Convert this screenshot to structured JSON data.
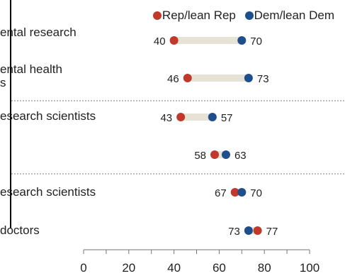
{
  "chart_data": {
    "type": "dumbbell",
    "legend": [
      {
        "label": "Rep/lean Rep",
        "color": "#c0392b"
      },
      {
        "label": "Dem/lean Dem",
        "color": "#1f4e8c"
      }
    ],
    "rows": [
      {
        "label": "ental research",
        "sublabel": "",
        "rep": 40,
        "dem": 70
      },
      {
        "label": "ental health",
        "sublabel": "s",
        "rep": 46,
        "dem": 73
      },
      {
        "label": "esearch scientists",
        "sublabel": "",
        "rep": 43,
        "dem": 57
      },
      {
        "label": "",
        "sublabel": "",
        "rep": 58,
        "dem": 63
      },
      {
        "label": "esearch scientists",
        "sublabel": "",
        "rep": 67,
        "dem": 70
      },
      {
        "label": "doctors",
        "sublabel": "",
        "rep": 77,
        "dem": 73
      }
    ],
    "xlim": [
      0,
      100
    ],
    "xticks": [
      0,
      20,
      40,
      60,
      80,
      100
    ],
    "grid": false
  }
}
